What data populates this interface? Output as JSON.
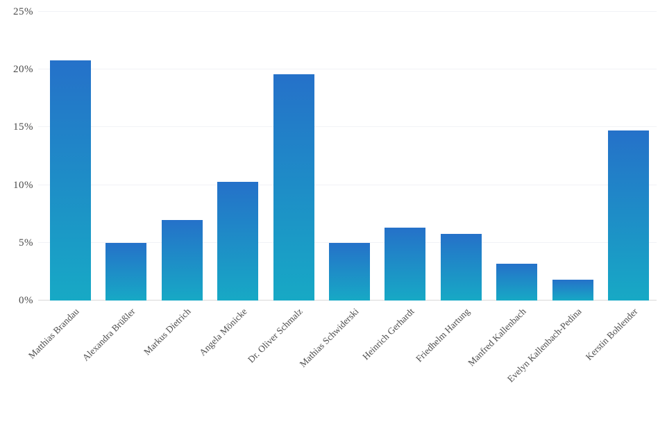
{
  "chart_data": {
    "type": "bar",
    "title": "",
    "xlabel": "",
    "ylabel": "",
    "legend": "none",
    "grid": "horizontal",
    "categories": [
      "Matthias Brandau",
      "Alexandra Brüßler",
      "Markus Dietrich",
      "Angela Mönicke",
      "Dr. Oliver Schmalz",
      "Mathias Schwiderski",
      "Heinrich Gerhardt",
      "Friedhelm Hartung",
      "Manfred Kallenbach",
      "Evelyn Kallenbach-Pedina",
      "Kerstin Bohlender"
    ],
    "values": [
      20.8,
      5.0,
      7.0,
      10.3,
      19.6,
      5.0,
      6.3,
      5.8,
      3.2,
      1.8,
      14.7
    ],
    "value_unit": "%",
    "ylim": [
      0,
      25
    ],
    "y_ticks": [
      {
        "value": 0,
        "label": "0%"
      },
      {
        "value": 5,
        "label": "5%"
      },
      {
        "value": 10,
        "label": "10%"
      },
      {
        "value": 15,
        "label": "15%"
      },
      {
        "value": 20,
        "label": "20%"
      },
      {
        "value": 25,
        "label": "25%"
      }
    ],
    "colors": {
      "bar_gradient_top": "#2571c9",
      "bar_gradient_bottom": "#17a9c5",
      "gridline": "#f1f2f6",
      "axis_baseline": "#d9d9d9",
      "tick_label": "#4a4a4a",
      "category_label": "#4d4d4d",
      "background": "#ffffff"
    }
  }
}
